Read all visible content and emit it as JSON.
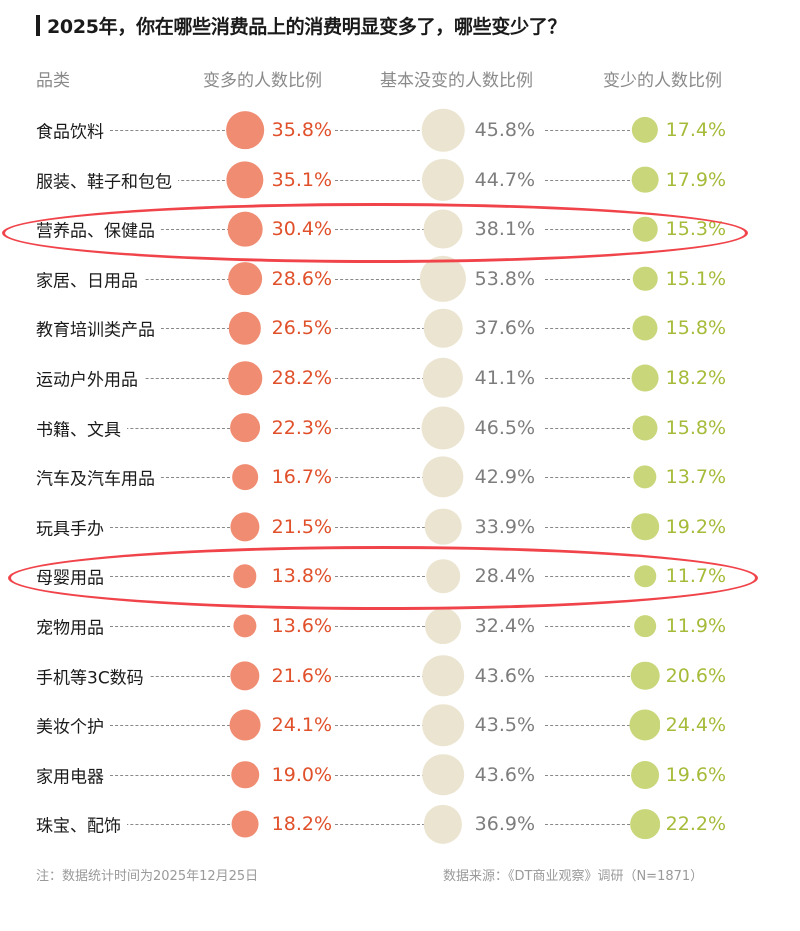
{
  "title": "2025年，你在哪些消费品上的消费明显变多了，哪些变少了？",
  "headers": {
    "category": "品类",
    "more": "变多的人数比例",
    "same": "基本没变的人数比例",
    "less": "变少的人数比例"
  },
  "colors": {
    "more_circle": "#f08c72",
    "more_text": "#e0502a",
    "same_circle": "#ebe4d0",
    "same_text": "#7d7d7d",
    "less_circle": "#c9d67a",
    "less_text": "#a6bb3a",
    "highlight": "#f0444a"
  },
  "rows": [
    {
      "category": "食品饮料",
      "more": "35.8%",
      "same": "45.8%",
      "less": "17.4%"
    },
    {
      "category": "服装、鞋子和包包",
      "more": "35.1%",
      "same": "44.7%",
      "less": "17.9%"
    },
    {
      "category": "营养品、保健品",
      "more": "30.4%",
      "same": "38.1%",
      "less": "15.3%"
    },
    {
      "category": "家居、日用品",
      "more": "28.6%",
      "same": "53.8%",
      "less": "15.1%"
    },
    {
      "category": "教育培训类产品",
      "more": "26.5%",
      "same": "37.6%",
      "less": "15.8%"
    },
    {
      "category": "运动户外用品",
      "more": "28.2%",
      "same": "41.1%",
      "less": "18.2%"
    },
    {
      "category": "书籍、文具",
      "more": "22.3%",
      "same": "46.5%",
      "less": "15.8%"
    },
    {
      "category": "汽车及汽车用品",
      "more": "16.7%",
      "same": "42.9%",
      "less": "13.7%"
    },
    {
      "category": "玩具手办",
      "more": "21.5%",
      "same": "33.9%",
      "less": "19.2%"
    },
    {
      "category": "母婴用品",
      "more": "13.8%",
      "same": "28.4%",
      "less": "11.7%"
    },
    {
      "category": "宠物用品",
      "more": "13.6%",
      "same": "32.4%",
      "less": "11.9%"
    },
    {
      "category": "手机等3C数码",
      "more": "21.6%",
      "same": "43.6%",
      "less": "20.6%"
    },
    {
      "category": "美妆个护",
      "more": "24.1%",
      "same": "43.5%",
      "less": "24.4%"
    },
    {
      "category": "家用电器",
      "more": "19.0%",
      "same": "43.6%",
      "less": "19.6%"
    },
    {
      "category": "珠宝、配饰",
      "more": "18.2%",
      "same": "36.9%",
      "less": "22.2%"
    }
  ],
  "highlighted_rows": [
    "营养品、保健品",
    "母婴用品"
  ],
  "footer": {
    "note": "注：数据统计时间为2025年12月25日",
    "source": "数据来源：《DT商业观察》调研（N=1871）"
  },
  "chart_data": {
    "type": "bubble-table",
    "title": "2025年，你在哪些消费品上的消费明显变多了，哪些变少了？",
    "categories": [
      "食品饮料",
      "服装、鞋子和包包",
      "营养品、保健品",
      "家居、日用品",
      "教育培训类产品",
      "运动户外用品",
      "书籍、文具",
      "汽车及汽车用品",
      "玩具手办",
      "母婴用品",
      "宠物用品",
      "手机等3C数码",
      "美妆个护",
      "家用电器",
      "珠宝、配饰"
    ],
    "series": [
      {
        "name": "变多的人数比例",
        "color": "#f08c72",
        "values": [
          35.8,
          35.1,
          30.4,
          28.6,
          26.5,
          28.2,
          22.3,
          16.7,
          21.5,
          13.8,
          13.6,
          21.6,
          24.1,
          19.0,
          18.2
        ]
      },
      {
        "name": "基本没变的人数比例",
        "color": "#ebe4d0",
        "values": [
          45.8,
          44.7,
          38.1,
          53.8,
          37.6,
          41.1,
          46.5,
          42.9,
          33.9,
          28.4,
          32.4,
          43.6,
          43.5,
          43.6,
          36.9
        ]
      },
      {
        "name": "变少的人数比例",
        "color": "#c9d67a",
        "values": [
          17.4,
          17.9,
          15.3,
          15.1,
          15.8,
          18.2,
          15.8,
          13.7,
          19.2,
          11.7,
          11.9,
          20.6,
          24.4,
          19.6,
          22.2
        ]
      }
    ],
    "unit": "%",
    "annotations": [
      "营养品、保健品 row circled in red",
      "母婴用品 row circled in red"
    ],
    "note": "注：数据统计时间为2025年12月25日",
    "source": "数据来源：《DT商业观察》调研（N=1871）"
  }
}
